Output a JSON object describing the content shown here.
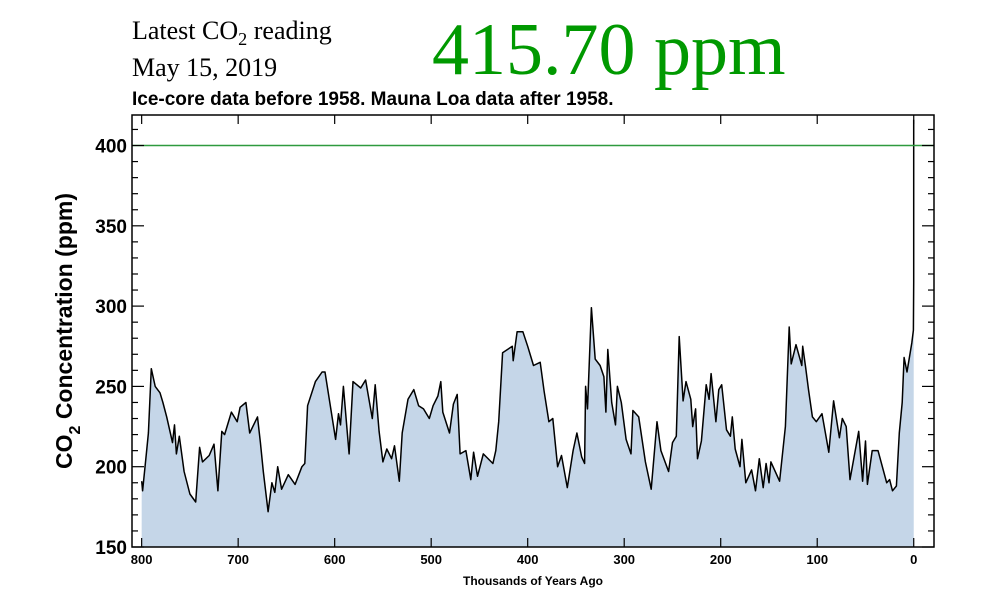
{
  "header": {
    "label_pre": "Latest CO",
    "label_sub": "2",
    "label_post": " reading",
    "date": "May 15, 2019",
    "latest_value": "415.70 ppm",
    "note": "Ice-core data before 1958. Mauna Loa data after 1958."
  },
  "colors": {
    "latest": "#009900",
    "fill": "#c5d6e8",
    "line": "#000000",
    "reference_line": "#2e9a3e"
  },
  "chart_data": {
    "type": "area",
    "title": "",
    "xlabel": "Thousands of Years Ago",
    "ylabel_pre": "CO",
    "ylabel_sub": "2",
    "ylabel_post": " Concentration (ppm)",
    "xlim": [
      810,
      -21
    ],
    "ylim": [
      150,
      419
    ],
    "x_reversed": true,
    "xticks": [
      800,
      700,
      600,
      500,
      400,
      300,
      200,
      100,
      0
    ],
    "yticks": [
      150,
      200,
      250,
      300,
      350,
      400
    ],
    "reference_line": {
      "y": 400
    },
    "grid": false,
    "legend": "none",
    "x": [
      800,
      799,
      795,
      793,
      790,
      786,
      781,
      778,
      774,
      768,
      766,
      764,
      761,
      756,
      750,
      744,
      740,
      737,
      730,
      725,
      721,
      717,
      714,
      707,
      701,
      698,
      692,
      688,
      680,
      677,
      674,
      669,
      665,
      662,
      659,
      655,
      648,
      641,
      634,
      631,
      628,
      620,
      613,
      610,
      605,
      599,
      596,
      594,
      591,
      585,
      581,
      573,
      568,
      561,
      558,
      554,
      550,
      546,
      541,
      538,
      533,
      530,
      524,
      518,
      513,
      508,
      502,
      498,
      493,
      490,
      488,
      481,
      477,
      473,
      470,
      464,
      459,
      456,
      452,
      446,
      436,
      433,
      430,
      426,
      416,
      415,
      411,
      405,
      400,
      394,
      387,
      383,
      378,
      374,
      369,
      365,
      359,
      353,
      349,
      344,
      341,
      340,
      338,
      334,
      330,
      325,
      321,
      319,
      317,
      313,
      309,
      307,
      303,
      298,
      293,
      291,
      285,
      278,
      272,
      266,
      262,
      254,
      250,
      246,
      243,
      239,
      236,
      231,
      229,
      226,
      224,
      220,
      215,
      212,
      210,
      205,
      202,
      199,
      194,
      190,
      188,
      185,
      180,
      178,
      174,
      168,
      164,
      160,
      156,
      153,
      150,
      148,
      139,
      133,
      129,
      127,
      122,
      116,
      115,
      112,
      109,
      105,
      101,
      95,
      88,
      83,
      77,
      74,
      70,
      66,
      57,
      53,
      50,
      48,
      43,
      37,
      28,
      25,
      22,
      18,
      15,
      12,
      10,
      7,
      2,
      0.3,
      0.06,
      0
    ],
    "y": [
      191,
      185,
      209,
      221,
      261,
      250,
      246,
      240,
      231,
      215,
      226,
      208,
      219,
      197,
      183,
      178,
      212,
      203,
      207,
      214,
      185,
      222,
      220,
      234,
      228,
      237,
      240,
      221,
      231,
      215,
      197,
      172,
      190,
      184,
      200,
      186,
      195,
      189,
      200,
      202,
      238,
      253,
      259,
      259,
      240,
      217,
      233,
      226,
      250,
      208,
      253,
      249,
      254,
      230,
      251,
      222,
      203,
      211,
      205,
      213,
      191,
      221,
      242,
      248,
      238,
      236,
      230,
      238,
      244,
      253,
      234,
      221,
      239,
      245,
      208,
      210,
      192,
      209,
      194,
      208,
      202,
      210,
      228,
      271,
      275,
      266,
      284,
      284,
      275,
      263,
      265,
      247,
      228,
      230,
      200,
      207,
      187,
      210,
      221,
      206,
      202,
      250,
      236,
      299,
      267,
      263,
      256,
      234,
      273,
      240,
      226,
      250,
      240,
      217,
      208,
      235,
      231,
      203,
      186,
      228,
      210,
      197,
      215,
      219,
      281,
      241,
      253,
      242,
      225,
      236,
      205,
      216,
      251,
      242,
      258,
      228,
      248,
      251,
      223,
      219,
      231,
      211,
      200,
      217,
      190,
      198,
      185,
      205,
      187,
      202,
      190,
      203,
      191,
      225,
      287,
      264,
      276,
      263,
      275,
      262,
      248,
      231,
      228,
      233,
      209,
      241,
      218,
      230,
      225,
      192,
      222,
      191,
      216,
      189,
      210,
      210,
      190,
      192,
      185,
      188,
      221,
      240,
      268,
      259,
      277,
      285,
      315,
      416
    ]
  }
}
